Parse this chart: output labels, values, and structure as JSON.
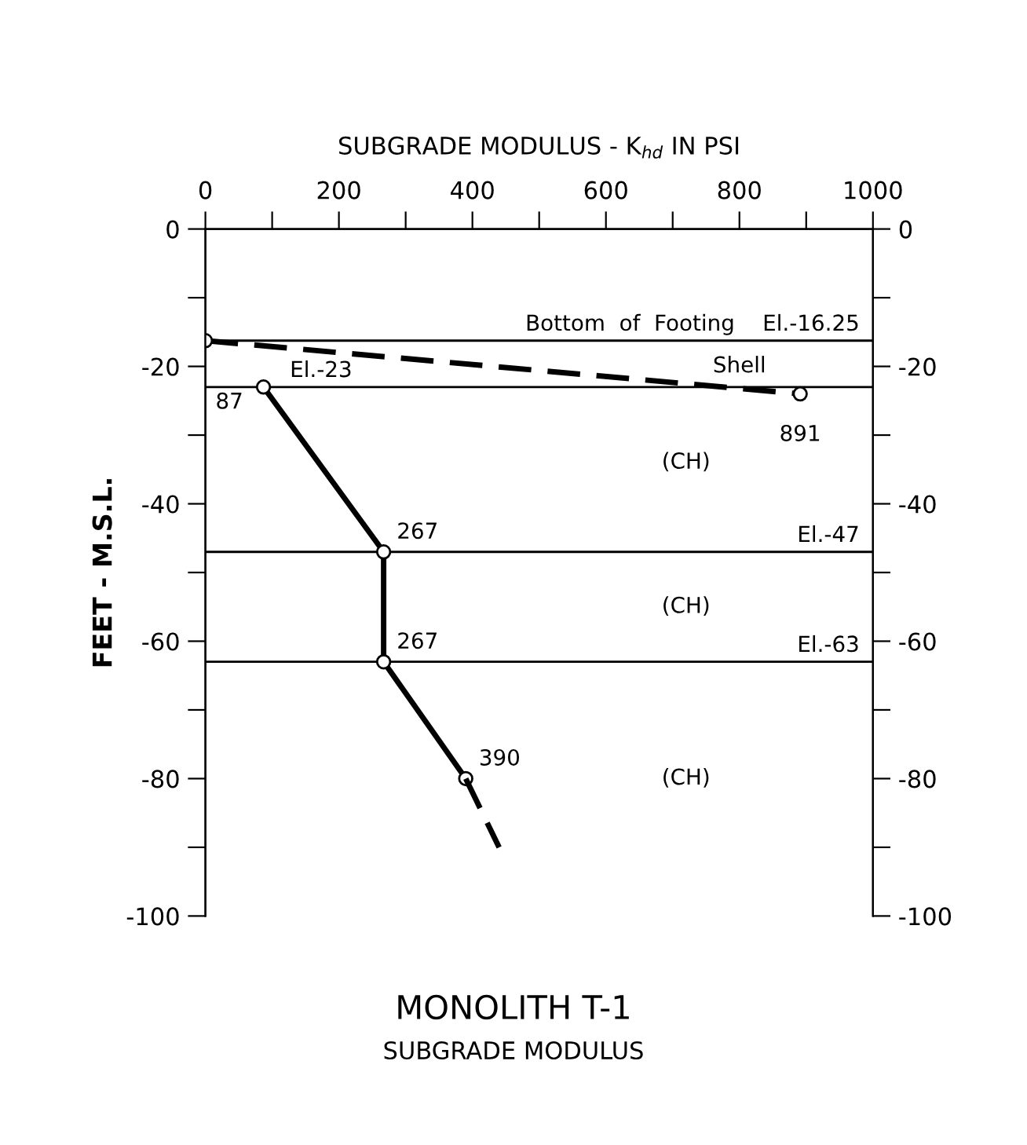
{
  "chart_data": {
    "type": "line",
    "title": "MONOLITH T-1",
    "subtitle": "SUBGRADE MODULUS",
    "xlabel": "SUBGRADE MODULUS - K$_{hd}$ IN PSI",
    "ylabel": "FEET - M.S.L.",
    "xlim": [
      0,
      1000
    ],
    "xticks": [
      0,
      {
        "value": 100,
        "label": null
      },
      200,
      {
        "value": 300,
        "label": null
      },
      400,
      {
        "value": 500,
        "label": null
      },
      600,
      {
        "value": 700,
        "label": null
      },
      800,
      {
        "value": 900,
        "label": null
      },
      1000
    ],
    "ylim": [
      -100,
      0
    ],
    "yticks": [
      -100,
      {
        "value": -90,
        "label": null
      },
      -80,
      {
        "value": -70,
        "label": null
      },
      -60,
      {
        "value": -50,
        "label": null
      },
      -40,
      {
        "value": -30,
        "label": null
      },
      -20,
      {
        "value": -10,
        "label": null
      },
      0
    ],
    "y2lim": [
      -100,
      0
    ],
    "y2ticks": [
      -100,
      {
        "value": -90,
        "label": null
      },
      -80,
      {
        "value": -70,
        "label": null
      },
      -60,
      {
        "value": -50,
        "label": null
      },
      -40,
      {
        "value": -30,
        "label": null
      },
      -20,
      {
        "value": -10,
        "label": null
      },
      0
    ],
    "grid": false,
    "series": [
      {
        "color": "#000000",
        "x": [
          87,
          267,
          267,
          390
        ],
        "values": [
          -23,
          -47,
          -63,
          -80
        ],
        "marker": "circle",
        "line_style": "solid"
      },
      {
        "color": "#000000",
        "x": [
          390,
          440
        ],
        "values": [
          -80,
          -90
        ],
        "marker": "none",
        "line_style": "dashed"
      },
      {
        "color": "#000000",
        "x": [
          0,
          891
        ],
        "values": [
          -16.25,
          -24
        ],
        "marker": "circle",
        "line_style": "dashed"
      }
    ],
    "ref_lines": [
      {
        "axis": "y",
        "value": -16.25,
        "label": "Bottom  of  Footing    El.-16.25",
        "color": "#000000"
      },
      {
        "axis": "y",
        "value": -23,
        "label": "El.-23",
        "color": "#000000"
      },
      {
        "axis": "y",
        "value": -47,
        "label": "El.-47",
        "color": "#000000"
      },
      {
        "axis": "y",
        "value": -63,
        "label": "El.-63",
        "color": "#000000"
      }
    ],
    "annotations": [
      {
        "text": "87",
        "x": 87,
        "y": -23
      },
      {
        "text": "267",
        "x": 267,
        "y": -47
      },
      {
        "text": "267",
        "x": 267,
        "y": -63
      },
      {
        "text": "390",
        "x": 390,
        "y": -80
      },
      {
        "text": "891",
        "x": 891,
        "y": -24
      },
      "Shell",
      "(CH)",
      "(CH)",
      "(CH)"
    ]
  }
}
